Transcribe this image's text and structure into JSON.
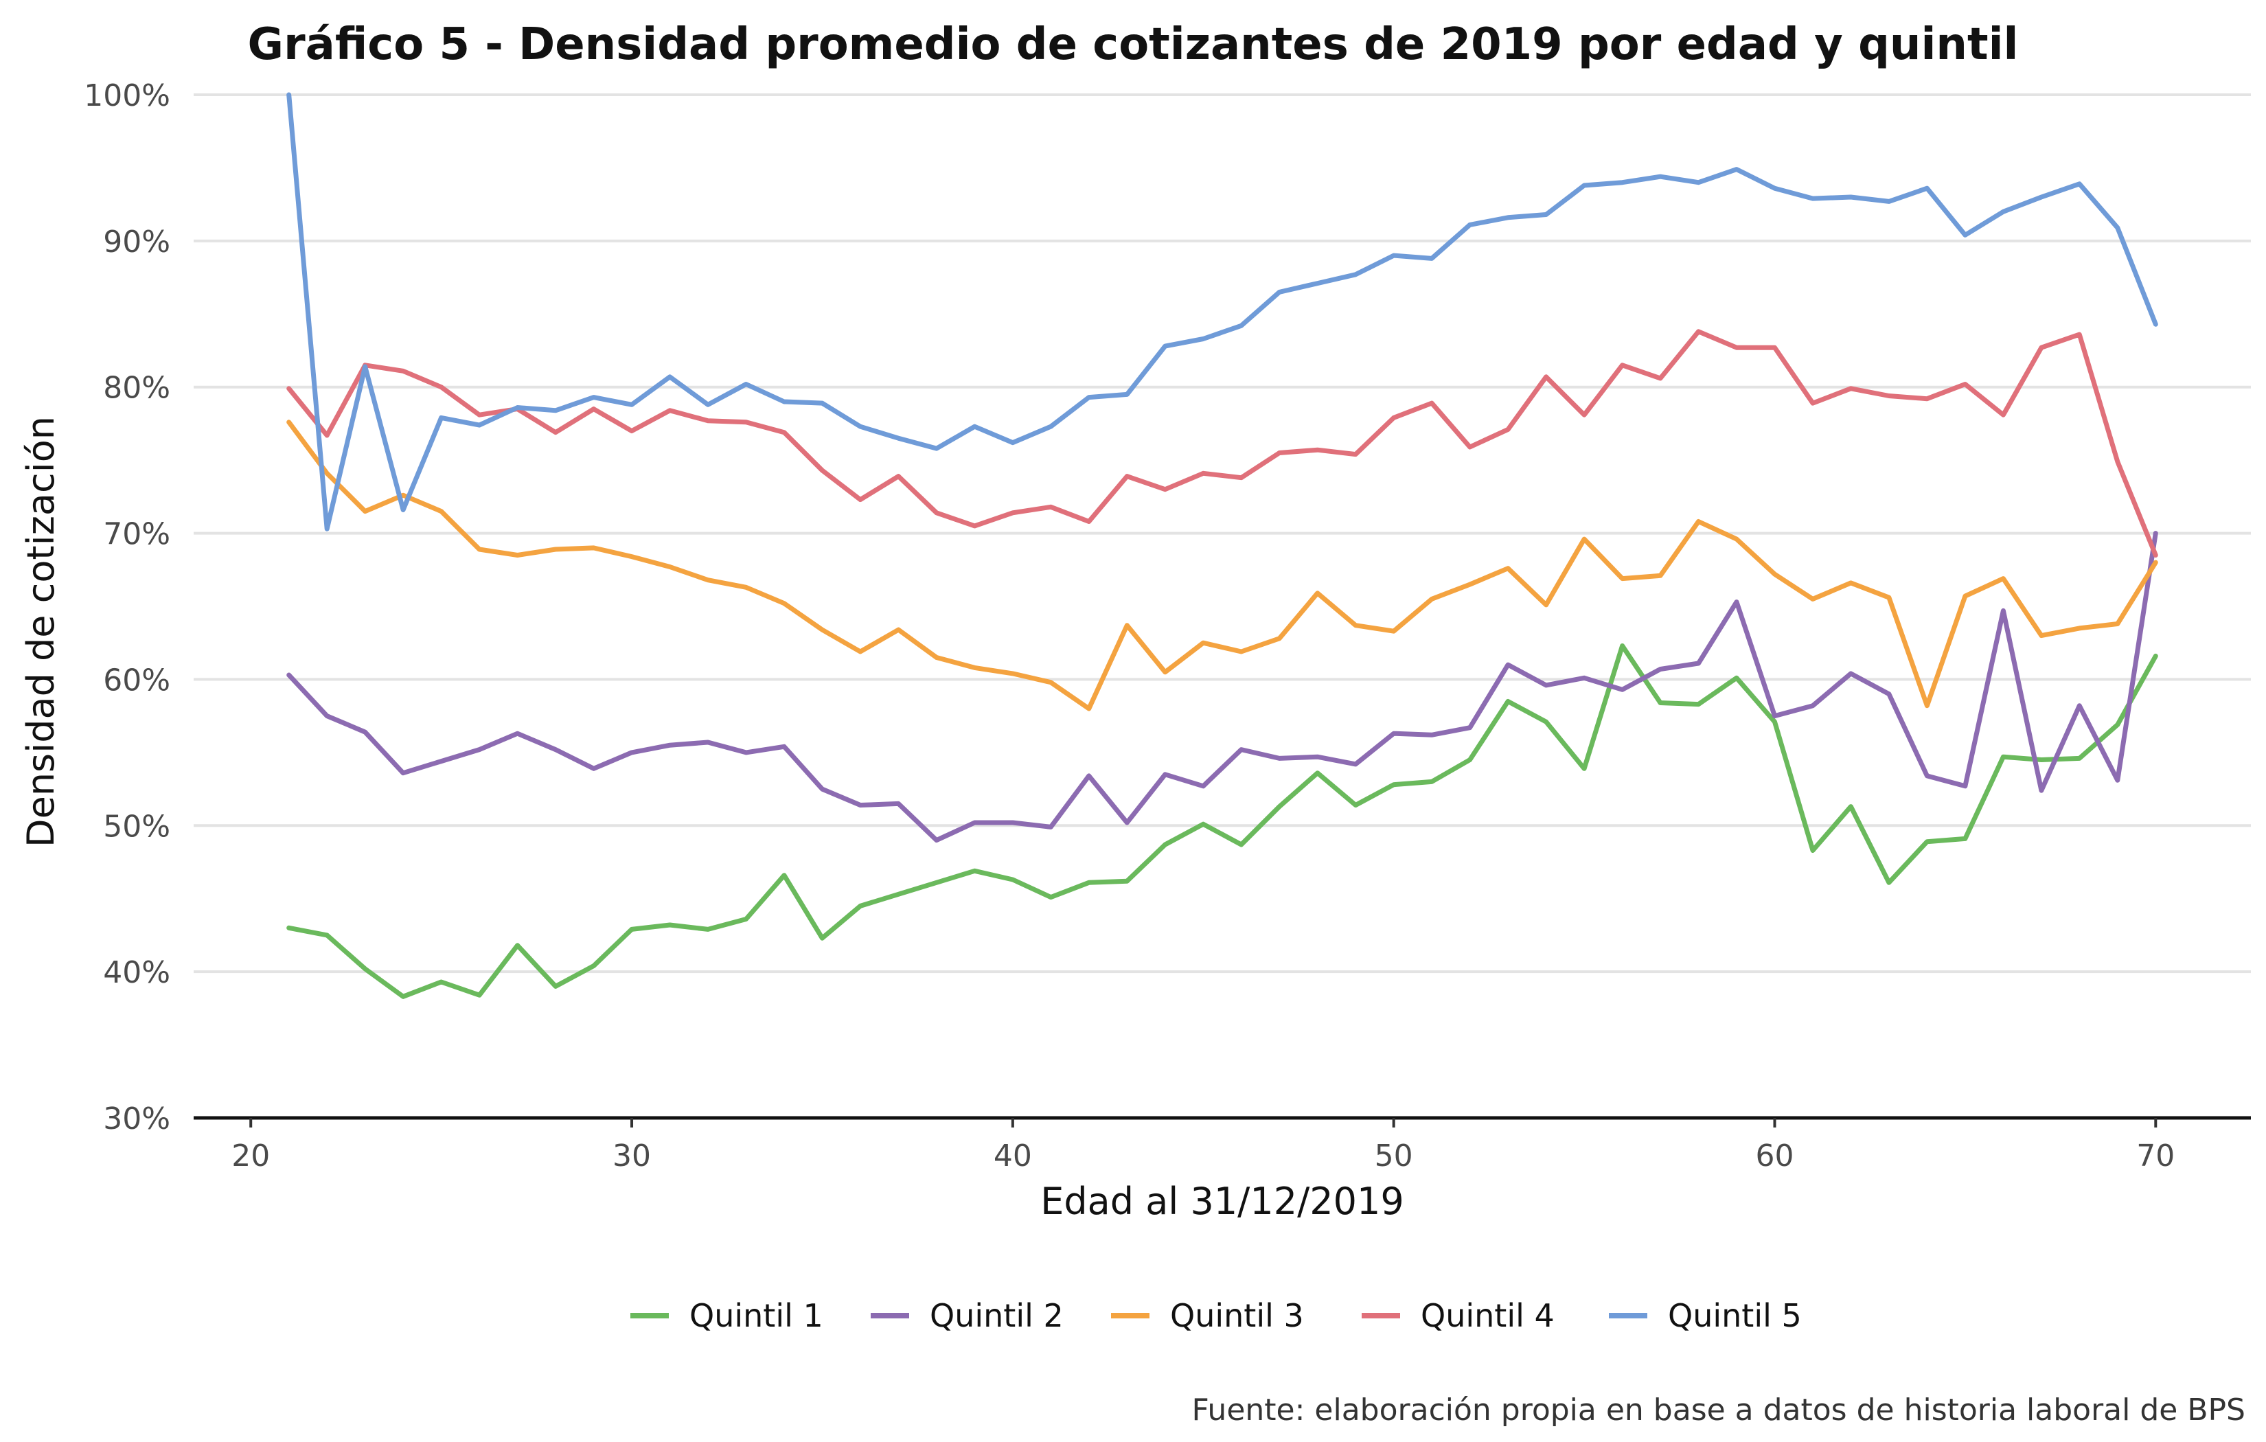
{
  "chart_data": {
    "type": "line",
    "title": "Gráfico 5 - Densidad promedio de cotizantes de 2019 por edad y quintil",
    "xlabel": "Edad al 31/12/2019",
    "ylabel": "Densidad de cotización",
    "caption": "Fuente: elaboración propia en base a datos de historia laboral de BPS",
    "xlim": [
      18.5,
      72.5
    ],
    "ylim": [
      30,
      100
    ],
    "x_ticks": [
      20,
      30,
      40,
      50,
      60,
      70
    ],
    "y_ticks": [
      30,
      40,
      50,
      60,
      70,
      80,
      90,
      100
    ],
    "y_tick_labels": [
      "30%",
      "40%",
      "50%",
      "60%",
      "70%",
      "80%",
      "90%",
      "100%"
    ],
    "grid": "horizontal",
    "legend_position": "bottom",
    "x": [
      21,
      22,
      23,
      24,
      25,
      26,
      27,
      28,
      29,
      30,
      31,
      32,
      33,
      34,
      35,
      36,
      37,
      38,
      39,
      40,
      41,
      42,
      43,
      44,
      45,
      46,
      47,
      48,
      49,
      50,
      51,
      52,
      53,
      54,
      55,
      56,
      57,
      58,
      59,
      60,
      61,
      62,
      63,
      64,
      65,
      66,
      67,
      68,
      69,
      70
    ],
    "series": [
      {
        "name": "Quintil 1",
        "color": "#6ab95c",
        "values": [
          43.0,
          42.5,
          40.2,
          38.3,
          39.3,
          38.4,
          41.8,
          39.0,
          40.4,
          42.9,
          43.2,
          42.9,
          43.6,
          46.6,
          42.3,
          44.5,
          45.3,
          46.1,
          46.9,
          46.3,
          45.1,
          46.1,
          46.2,
          48.7,
          50.1,
          48.7,
          51.3,
          53.6,
          51.4,
          52.8,
          53.0,
          54.5,
          58.5,
          57.1,
          53.9,
          62.3,
          58.4,
          58.3,
          60.1,
          57.1,
          48.3,
          51.3,
          46.1,
          48.9,
          49.1,
          54.7,
          54.5,
          54.6,
          56.9,
          61.6
        ]
      },
      {
        "name": "Quintil 2",
        "color": "#8c6bb1",
        "values": [
          60.3,
          57.5,
          56.4,
          53.6,
          54.4,
          55.2,
          56.3,
          55.2,
          53.9,
          55.0,
          55.5,
          55.7,
          55.0,
          55.4,
          52.5,
          51.4,
          51.5,
          49.0,
          50.2,
          50.2,
          49.9,
          53.4,
          50.2,
          53.5,
          52.7,
          55.2,
          54.6,
          54.7,
          54.2,
          56.3,
          56.2,
          56.7,
          61.0,
          59.6,
          60.1,
          59.3,
          60.7,
          61.1,
          65.3,
          57.5,
          58.2,
          60.4,
          59.0,
          53.4,
          52.7,
          64.7,
          52.4,
          58.2,
          53.1,
          70.0
        ]
      },
      {
        "name": "Quintil 3",
        "color": "#f4a340",
        "values": [
          77.6,
          74.1,
          71.5,
          72.6,
          71.5,
          68.9,
          68.5,
          68.9,
          69.0,
          68.4,
          67.7,
          66.8,
          66.3,
          65.2,
          63.4,
          61.9,
          63.4,
          61.5,
          60.8,
          60.4,
          59.8,
          58.0,
          63.7,
          60.5,
          62.5,
          61.9,
          62.8,
          65.9,
          63.7,
          63.3,
          65.5,
          66.5,
          67.6,
          65.1,
          69.6,
          66.9,
          67.1,
          70.8,
          69.6,
          67.2,
          65.5,
          66.6,
          65.6,
          58.2,
          65.7,
          66.9,
          63.0,
          63.5,
          63.8,
          68.0
        ]
      },
      {
        "name": "Quintil 4",
        "color": "#e0707a",
        "values": [
          79.9,
          76.7,
          81.5,
          81.1,
          80.0,
          78.1,
          78.5,
          76.9,
          78.5,
          77.0,
          78.4,
          77.7,
          77.6,
          76.9,
          74.3,
          72.3,
          73.9,
          71.4,
          70.5,
          71.4,
          71.8,
          70.8,
          73.9,
          73.0,
          74.1,
          73.8,
          75.5,
          75.7,
          75.4,
          77.9,
          78.9,
          75.9,
          77.1,
          80.7,
          78.1,
          81.5,
          80.6,
          83.8,
          82.7,
          82.7,
          78.9,
          79.9,
          79.4,
          79.2,
          80.2,
          78.1,
          82.7,
          83.6,
          74.9,
          68.5
        ]
      },
      {
        "name": "Quintil 5",
        "color": "#6f9bd8",
        "values": [
          100.0,
          70.3,
          81.4,
          71.6,
          77.9,
          77.4,
          78.6,
          78.4,
          79.3,
          78.8,
          80.7,
          78.8,
          80.2,
          79.0,
          78.9,
          77.3,
          76.5,
          75.8,
          77.3,
          76.2,
          77.3,
          79.3,
          79.5,
          82.8,
          83.3,
          84.2,
          86.5,
          87.1,
          87.7,
          89.0,
          88.8,
          91.1,
          91.6,
          91.8,
          93.8,
          94.0,
          94.4,
          94.0,
          94.9,
          93.6,
          92.9,
          93.0,
          92.7,
          93.6,
          90.4,
          92.0,
          93.0,
          93.9,
          90.9,
          84.3
        ]
      }
    ]
  }
}
